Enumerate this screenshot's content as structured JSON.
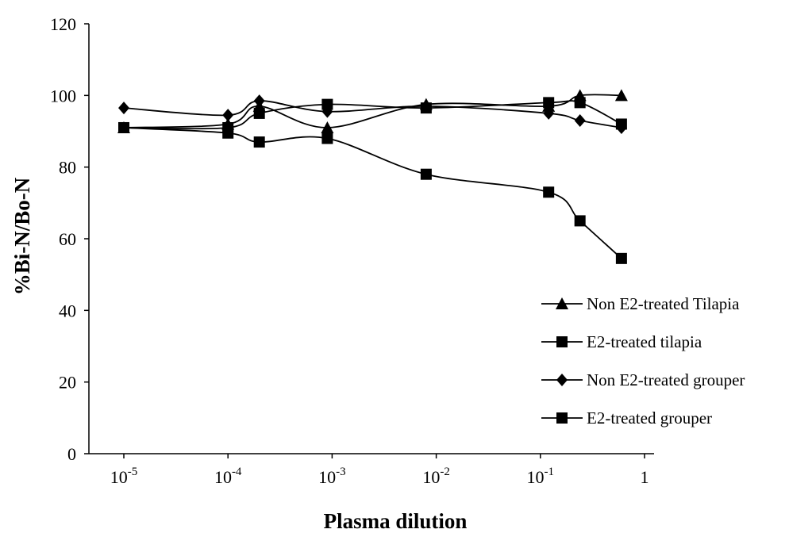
{
  "chart_data": {
    "type": "line",
    "title": "",
    "xlabel": "Plasma dilution",
    "ylabel": "%Bi-N/Bo-N",
    "x_scale": "log",
    "x_ticks": [
      {
        "value": 1e-05,
        "base": "10",
        "exp": "-5"
      },
      {
        "value": 0.0001,
        "base": "10",
        "exp": "-4"
      },
      {
        "value": 0.001,
        "base": "10",
        "exp": "-3"
      },
      {
        "value": 0.01,
        "base": "10",
        "exp": "-2"
      },
      {
        "value": 0.1,
        "base": "10",
        "exp": "-1"
      },
      {
        "value": 1,
        "base": "1",
        "exp": ""
      }
    ],
    "xlim": [
      1e-05,
      1
    ],
    "ylim": [
      0,
      120
    ],
    "y_ticks": [
      "0",
      "20",
      "40",
      "60",
      "80",
      "100",
      "120"
    ],
    "grid": false,
    "legend_position": "right",
    "series": [
      {
        "name": "Non E2-treated Tilapia",
        "marker": "triangle",
        "color": "#000000",
        "points": [
          [
            1e-05,
            91
          ],
          [
            0.0001,
            92
          ],
          [
            0.0002,
            97
          ],
          [
            0.0009,
            91
          ],
          [
            0.008,
            97.5
          ],
          [
            0.12,
            97
          ],
          [
            0.24,
            100
          ],
          [
            0.6,
            100
          ]
        ]
      },
      {
        "name": "E2-treated tilapia",
        "marker": "square",
        "color": "#000000",
        "points": [
          [
            1e-05,
            91
          ],
          [
            0.0001,
            89.5
          ],
          [
            0.0002,
            87
          ],
          [
            0.0009,
            88
          ],
          [
            0.008,
            78
          ],
          [
            0.12,
            73
          ],
          [
            0.24,
            65
          ],
          [
            0.6,
            54.5
          ]
        ]
      },
      {
        "name": "Non E2-treated grouper",
        "marker": "diamond",
        "color": "#000000",
        "points": [
          [
            1e-05,
            96.5
          ],
          [
            0.0001,
            94.5
          ],
          [
            0.0002,
            98.5
          ],
          [
            0.0009,
            95.5
          ],
          [
            0.008,
            97
          ],
          [
            0.12,
            95
          ],
          [
            0.24,
            93
          ],
          [
            0.6,
            91
          ]
        ]
      },
      {
        "name": "E2-treated grouper",
        "marker": "square",
        "color": "#000000",
        "points": [
          [
            1e-05,
            91
          ],
          [
            0.0001,
            91
          ],
          [
            0.0002,
            95
          ],
          [
            0.0009,
            97.5
          ],
          [
            0.008,
            96.5
          ],
          [
            0.12,
            98
          ],
          [
            0.24,
            98
          ],
          [
            0.6,
            92
          ]
        ]
      }
    ]
  }
}
